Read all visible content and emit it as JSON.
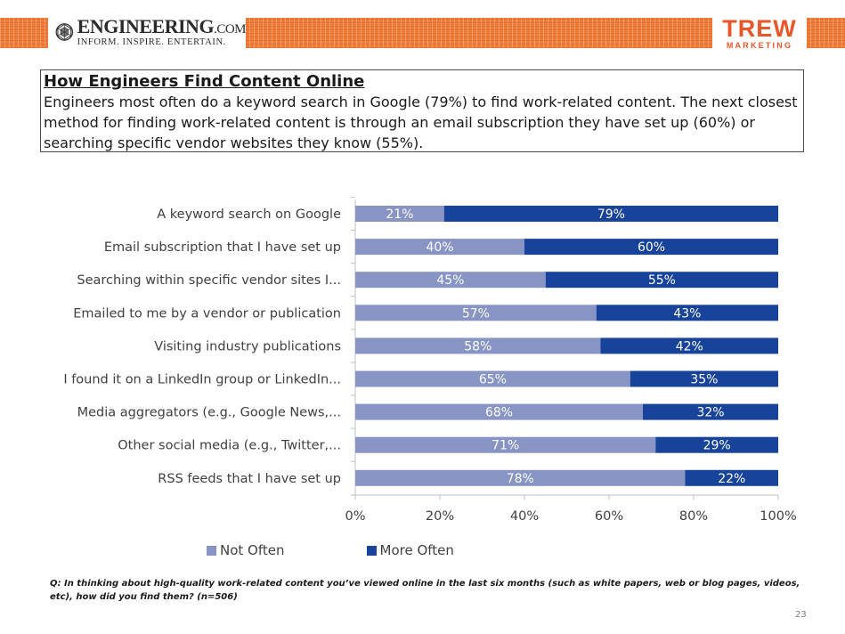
{
  "header": {
    "left_logo": {
      "name": "ENGINEERING",
      "suffix": ".COM",
      "tagline": "INFORM. INSPIRE. ENTERTAIN."
    },
    "right_logo": {
      "name": "TREW",
      "sub": "MARKETING"
    },
    "band_color": "#f07c3a",
    "brand_color": "#e8572a"
  },
  "title": "How Engineers Find Content Online",
  "summary": "Engineers most often do a keyword search in Google (79%) to find work-related content. The next closest method for finding work-related content is through an email subscription they have set up (60%) or searching specific vendor websites they know (55%).",
  "chart_data": {
    "type": "bar",
    "orientation": "horizontal",
    "stacked": "percent",
    "categories": [
      "A keyword search on Google",
      "Email subscription that I have set up",
      "Searching within specific vendor sites I...",
      "Emailed to me by a vendor or publication",
      "Visiting industry publications",
      "I found it on a LinkedIn group or LinkedIn...",
      "Media aggregators (e.g., Google News,...",
      "Other social media (e.g., Twitter,...",
      "RSS feeds that I have set up"
    ],
    "series": [
      {
        "name": "Not Often",
        "color": "#8794c4",
        "values": [
          21,
          40,
          45,
          57,
          58,
          65,
          68,
          71,
          78
        ]
      },
      {
        "name": "More Often",
        "color": "#17439a",
        "values": [
          79,
          60,
          55,
          43,
          42,
          35,
          32,
          29,
          22
        ]
      }
    ],
    "xlim": [
      0,
      100
    ],
    "xticks": [
      "0%",
      "20%",
      "40%",
      "60%",
      "80%",
      "100%"
    ],
    "data_label_suffix": "%",
    "grid": false,
    "legend_position": "bottom"
  },
  "question": "Q: In thinking about high-quality work-related content you’ve viewed online in the last six months (such as white papers, web or blog pages, videos, etc), how did you find them? (n=506)",
  "page_number": "23"
}
